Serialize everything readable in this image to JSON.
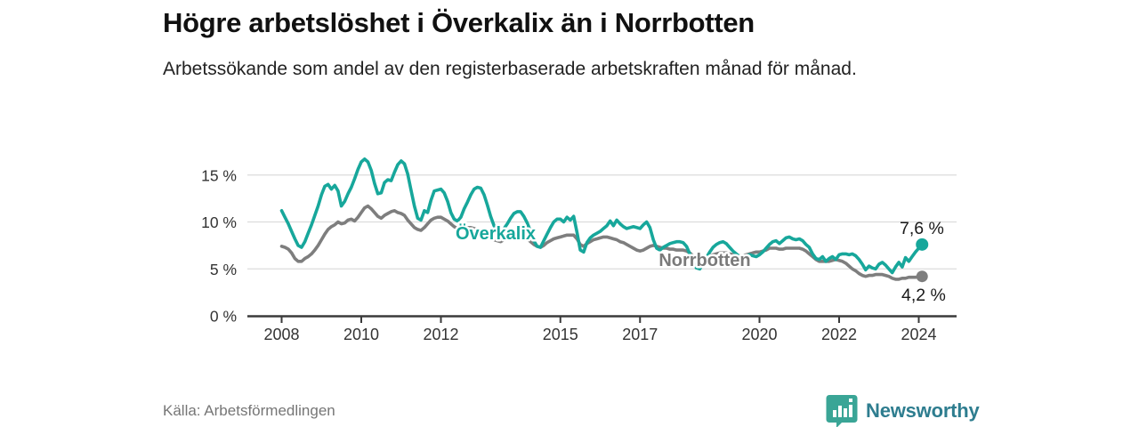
{
  "header": {
    "title": "Högre arbetslöshet i Överkalix än i Norrbotten",
    "subtitle": "Arbetssökande som andel av den registerbaserade arbetskraften månad för månad."
  },
  "footer": {
    "source": "Källa: Arbetsförmedlingen",
    "logo_text": "Newsworthy"
  },
  "colors": {
    "accent_teal": "#17a79b",
    "line_gray": "#7e7e7e",
    "gridline": "#dcdcdc",
    "axis": "#3a3a3a",
    "tick_text": "#333333",
    "end_label_text": "#1a1a1a",
    "logo_teal": "#3aa596",
    "logo_text_color": "#2e7d8f"
  },
  "chart_data": {
    "type": "line",
    "title": "Högre arbetslöshet i Överkalix än i Norrbotten",
    "subtitle": "Arbetssökande som andel av den registerbaserade arbetskraften månad för månad.",
    "x_unit": "month",
    "x_start": "2008-01",
    "x_end": "2024-02",
    "grid": true,
    "ylim": [
      0,
      17.5
    ],
    "y_ticks": [
      {
        "value": 0,
        "label": "0 %"
      },
      {
        "value": 5,
        "label": "5 %"
      },
      {
        "value": 10,
        "label": "10 %"
      },
      {
        "value": 15,
        "label": "15 %"
      }
    ],
    "x_ticks": [
      {
        "year": 2008,
        "label": "2008"
      },
      {
        "year": 2010,
        "label": "2010"
      },
      {
        "year": 2012,
        "label": "2012"
      },
      {
        "year": 2015,
        "label": "2015"
      },
      {
        "year": 2017,
        "label": "2017"
      },
      {
        "year": 2020,
        "label": "2020"
      },
      {
        "year": 2022,
        "label": "2022"
      },
      {
        "year": 2024,
        "label": "2024"
      }
    ],
    "series": [
      {
        "name": "Norrbotten",
        "color": "#7e7e7e",
        "end_label": "4,2 %",
        "values": [
          7.4,
          7.3,
          7.1,
          6.7,
          6.1,
          5.8,
          5.8,
          6.1,
          6.3,
          6.6,
          7.0,
          7.5,
          8.1,
          8.7,
          9.2,
          9.5,
          9.7,
          10.0,
          9.8,
          9.9,
          10.2,
          10.3,
          10.1,
          10.5,
          11.0,
          11.5,
          11.7,
          11.4,
          11.0,
          10.6,
          10.4,
          10.7,
          10.9,
          11.1,
          11.2,
          11.0,
          10.9,
          10.7,
          10.2,
          9.8,
          9.4,
          9.2,
          9.1,
          9.4,
          9.8,
          10.2,
          10.4,
          10.5,
          10.5,
          10.3,
          10.1,
          9.8,
          9.5,
          9.3,
          9.2,
          9.3,
          9.4,
          9.4,
          9.3,
          9.2,
          9.0,
          8.9,
          8.7,
          8.4,
          8.1,
          8.0,
          7.9,
          8.1,
          8.3,
          8.4,
          8.5,
          8.5,
          8.5,
          8.4,
          8.2,
          7.9,
          7.6,
          7.4,
          7.3,
          7.5,
          7.8,
          8.0,
          8.2,
          8.3,
          8.4,
          8.5,
          8.6,
          8.6,
          8.6,
          8.2,
          7.6,
          7.4,
          7.7,
          7.9,
          8.1,
          8.2,
          8.3,
          8.4,
          8.4,
          8.3,
          8.2,
          8.1,
          7.9,
          7.8,
          7.6,
          7.4,
          7.2,
          7.0,
          6.9,
          7.0,
          7.2,
          7.4,
          7.5,
          7.4,
          7.3,
          7.2,
          7.2,
          7.1,
          7.1,
          7.0,
          7.0,
          7.0,
          6.9,
          6.7,
          6.4,
          6.2,
          6.1,
          6.2,
          6.3,
          6.4,
          6.5,
          6.6,
          6.7,
          6.7,
          6.7,
          6.6,
          6.5,
          6.4,
          6.4,
          6.4,
          6.5,
          6.6,
          6.7,
          6.8,
          6.8,
          6.9,
          7.0,
          7.2,
          7.2,
          7.2,
          7.1,
          7.1,
          7.2,
          7.2,
          7.2,
          7.2,
          7.2,
          7.1,
          6.9,
          6.6,
          6.3,
          6.0,
          5.8,
          5.8,
          5.8,
          5.8,
          5.9,
          6.0,
          5.9,
          5.8,
          5.6,
          5.3,
          5.0,
          4.8,
          4.5,
          4.3,
          4.2,
          4.3,
          4.3,
          4.4,
          4.4,
          4.4,
          4.3,
          4.2,
          4.0,
          3.9,
          3.9,
          4.0,
          4.0,
          4.1,
          4.1,
          4.1,
          4.2,
          4.2
        ]
      },
      {
        "name": "Överkalix",
        "color": "#17a79b",
        "end_label": "7,6 %",
        "values": [
          11.2,
          10.5,
          9.8,
          9.0,
          8.2,
          7.5,
          7.3,
          7.9,
          8.8,
          9.7,
          10.7,
          11.7,
          12.9,
          13.8,
          14.0,
          13.5,
          13.9,
          13.3,
          11.7,
          12.2,
          13.0,
          13.7,
          14.6,
          15.6,
          16.4,
          16.7,
          16.4,
          15.5,
          14.1,
          13.0,
          13.1,
          14.2,
          14.5,
          14.4,
          15.3,
          16.1,
          16.5,
          16.2,
          15.1,
          13.4,
          11.7,
          10.4,
          10.2,
          11.2,
          11.0,
          12.3,
          13.3,
          13.4,
          13.5,
          13.1,
          12.2,
          11.0,
          10.3,
          10.1,
          10.5,
          11.4,
          12.1,
          12.9,
          13.5,
          13.7,
          13.6,
          12.9,
          11.8,
          10.6,
          9.6,
          9.0,
          8.8,
          9.3,
          9.8,
          10.4,
          10.9,
          11.1,
          11.1,
          10.6,
          9.9,
          9.0,
          8.0,
          7.4,
          7.3,
          8.0,
          8.7,
          9.4,
          10.0,
          10.3,
          10.3,
          10.0,
          10.5,
          10.2,
          10.6,
          8.9,
          7.0,
          6.8,
          7.8,
          8.3,
          8.6,
          8.8,
          9.0,
          9.3,
          9.6,
          10.1,
          9.6,
          10.2,
          9.8,
          9.5,
          9.3,
          9.4,
          9.5,
          9.4,
          9.3,
          9.7,
          10.0,
          9.4,
          8.1,
          7.2,
          7.0,
          7.3,
          7.5,
          7.7,
          7.8,
          7.9,
          7.9,
          7.8,
          7.4,
          6.6,
          5.7,
          5.1,
          5.0,
          5.5,
          6.2,
          6.8,
          7.3,
          7.6,
          7.8,
          7.9,
          7.7,
          7.3,
          6.9,
          6.6,
          6.3,
          6.2,
          6.4,
          6.5,
          6.4,
          6.3,
          6.5,
          6.8,
          7.2,
          7.6,
          7.9,
          8.0,
          7.7,
          8.0,
          8.3,
          8.4,
          8.2,
          8.1,
          8.2,
          8.0,
          7.6,
          7.3,
          6.6,
          6.1,
          6.0,
          6.3,
          5.8,
          6.1,
          6.3,
          6.0,
          6.5,
          6.6,
          6.6,
          6.5,
          6.6,
          6.4,
          6.0,
          5.5,
          4.9,
          5.3,
          5.1,
          5.0,
          5.5,
          5.7,
          5.4,
          5.0,
          4.6,
          5.2,
          5.7,
          5.2,
          6.2,
          5.8,
          6.3,
          6.8,
          7.2,
          7.6
        ]
      }
    ]
  }
}
